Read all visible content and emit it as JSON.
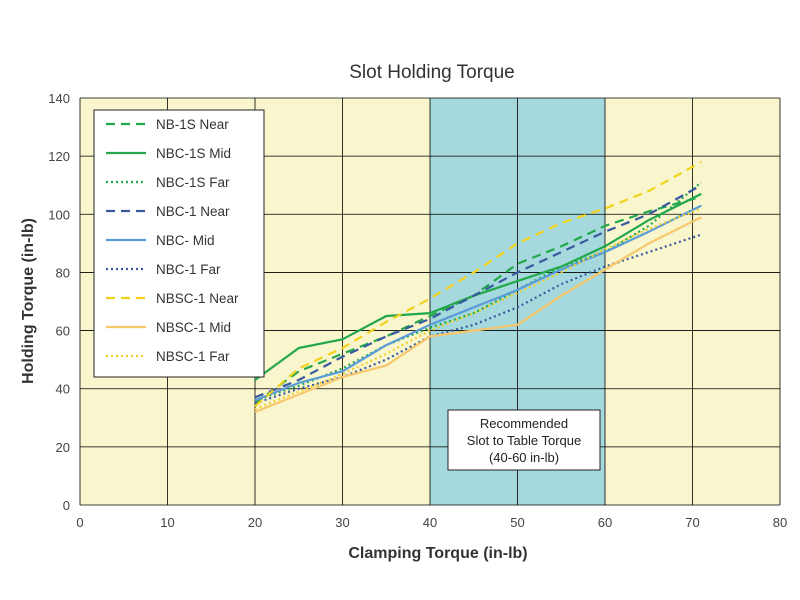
{
  "chart_data": {
    "type": "line",
    "title": "Slot Holding Torque",
    "xlabel": "Clamping Torque (in-lb)",
    "ylabel": "Holding Torque (in-lb)",
    "xlim": [
      0,
      80
    ],
    "ylim": [
      0,
      140
    ],
    "xticks": [
      0,
      10,
      20,
      30,
      40,
      50,
      60,
      70,
      80
    ],
    "yticks": [
      0,
      20,
      40,
      60,
      80,
      100,
      120,
      140
    ],
    "grid": true,
    "legend_position": "top-left",
    "colors": {
      "plot_background": "#f9f5cd",
      "highlight_band": "#a5d9dd",
      "grid": "#000000",
      "green": "#22a84a",
      "blue_dark": "#3a5aa0",
      "blue_light": "#5b9bd8",
      "yellow_dashed": "#f2d21a",
      "orange_light": "#f7c76b",
      "yellow_dotted": "#f0d030"
    },
    "highlight": {
      "x_range": [
        40,
        60
      ],
      "label_lines": [
        "Recommended",
        "Slot to Table Torque",
        "(40-60 in-lb)"
      ]
    },
    "series": [
      {
        "name": "NB-1S Near",
        "color": "#22a84a",
        "style": "dashed",
        "x": [
          20,
          25,
          30,
          35,
          40,
          45,
          50,
          55,
          60,
          65,
          71
        ],
        "y": [
          35,
          46,
          52,
          58,
          65,
          72,
          83,
          89,
          96,
          101,
          106
        ]
      },
      {
        "name": "NBC-1S Mid",
        "color": "#22a84a",
        "style": "solid",
        "x": [
          20,
          25,
          30,
          35,
          40,
          45,
          50,
          55,
          60,
          65,
          71
        ],
        "y": [
          43,
          54,
          57,
          65,
          66,
          72,
          77,
          82,
          89,
          98,
          107
        ]
      },
      {
        "name": "NBC-1S Far",
        "color": "#22a84a",
        "style": "dotted",
        "x": [
          20,
          25,
          30,
          35,
          40,
          45,
          50,
          55,
          60,
          65,
          71
        ],
        "y": [
          36,
          41,
          47,
          55,
          61,
          66,
          74,
          82,
          87,
          96,
          111
        ]
      },
      {
        "name": "NBC-1 Near",
        "color": "#3a5aa0",
        "style": "dashed",
        "x": [
          20,
          25,
          30,
          35,
          40,
          45,
          50,
          55,
          60,
          65,
          71
        ],
        "y": [
          37,
          43,
          51,
          58,
          64,
          72,
          80,
          87,
          94,
          100,
          110
        ]
      },
      {
        "name": "NBC- Mid",
        "color": "#5b9bd8",
        "style": "solid",
        "x": [
          20,
          25,
          30,
          35,
          40,
          45,
          50,
          55,
          60,
          65,
          71
        ],
        "y": [
          36,
          42,
          46,
          55,
          62,
          68,
          74,
          81,
          87,
          94,
          103
        ]
      },
      {
        "name": "NBC-1 Far",
        "color": "#3a5aa0",
        "style": "dotted",
        "x": [
          20,
          25,
          30,
          35,
          40,
          45,
          50,
          55,
          60,
          65,
          71
        ],
        "y": [
          35,
          40,
          44,
          50,
          58,
          62,
          68,
          76,
          82,
          87,
          93
        ]
      },
      {
        "name": "NBSC-1 Near",
        "color": "#f2d21a",
        "style": "dashed",
        "x": [
          20,
          25,
          30,
          35,
          40,
          45,
          50,
          55,
          60,
          65,
          71
        ],
        "y": [
          34,
          47,
          54,
          63,
          71,
          80,
          90,
          97,
          102,
          108,
          118
        ]
      },
      {
        "name": "NBSC-1 Mid",
        "color": "#f7c76b",
        "style": "solid",
        "x": [
          20,
          25,
          30,
          35,
          40,
          45,
          50,
          55,
          60,
          65,
          71
        ],
        "y": [
          32,
          38,
          44,
          48,
          58,
          60,
          62,
          72,
          81,
          90,
          99
        ]
      },
      {
        "name": "NBSC-1 Far",
        "color": "#f0d030",
        "style": "dotted",
        "x": [
          20,
          25,
          30,
          35,
          40,
          45,
          50,
          55,
          60,
          65,
          71
        ],
        "y": [
          33,
          39,
          45,
          52,
          60,
          66,
          73,
          80,
          88,
          95,
          102
        ]
      }
    ]
  }
}
